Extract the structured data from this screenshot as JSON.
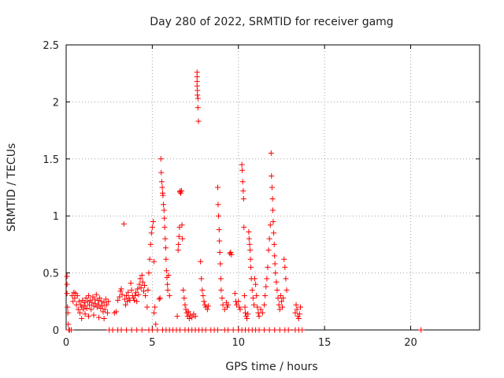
{
  "chart_data": {
    "type": "scatter",
    "title": "Day 280 of 2022, SRMTID for receiver gamg",
    "xlabel": "GPS time / hours",
    "ylabel": "SRMTID / TECUs",
    "xlim": [
      0,
      24
    ],
    "ylim": [
      0,
      2.5
    ],
    "grid": true,
    "marker": "+",
    "color": "#ff0000",
    "xticks": [
      0,
      5,
      10,
      15,
      20
    ],
    "xtick_labels": [
      "0",
      "5",
      "10",
      "15",
      "20"
    ],
    "yticks": [
      0,
      0.5,
      1,
      1.5,
      2,
      2.5
    ],
    "ytick_labels": [
      "0",
      "0.5",
      "1",
      "1.5",
      "2",
      "2.5"
    ],
    "series": [
      {
        "name": "SRMTID",
        "points": [
          [
            0.05,
            0.47
          ],
          [
            0.05,
            0.4
          ],
          [
            0.05,
            0.32
          ],
          [
            0.08,
            0.2
          ],
          [
            0.1,
            0.15
          ],
          [
            0.12,
            0.05
          ],
          [
            0.15,
            0.0
          ],
          [
            0.2,
            0.0
          ],
          [
            0.3,
            0.0
          ],
          [
            0.35,
            0.3
          ],
          [
            0.4,
            0.25
          ],
          [
            0.45,
            0.33
          ],
          [
            0.5,
            0.28
          ],
          [
            0.55,
            0.32
          ],
          [
            0.6,
            0.22
          ],
          [
            0.65,
            0.3
          ],
          [
            0.7,
            0.18
          ],
          [
            0.75,
            0.25
          ],
          [
            0.8,
            0.15
          ],
          [
            0.85,
            0.22
          ],
          [
            0.9,
            0.2
          ],
          [
            0.95,
            0.26
          ],
          [
            1.0,
            0.18
          ],
          [
            1.05,
            0.24
          ],
          [
            1.1,
            0.21
          ],
          [
            1.15,
            0.28
          ],
          [
            1.2,
            0.19
          ],
          [
            1.25,
            0.25
          ],
          [
            1.3,
            0.3
          ],
          [
            1.35,
            0.22
          ],
          [
            1.4,
            0.26
          ],
          [
            1.45,
            0.18
          ],
          [
            1.5,
            0.24
          ],
          [
            1.55,
            0.29
          ],
          [
            1.6,
            0.21
          ],
          [
            1.65,
            0.27
          ],
          [
            1.7,
            0.23
          ],
          [
            1.75,
            0.31
          ],
          [
            1.8,
            0.2
          ],
          [
            1.85,
            0.26
          ],
          [
            1.9,
            0.22
          ],
          [
            1.95,
            0.28
          ],
          [
            2.0,
            0.19
          ],
          [
            2.05,
            0.25
          ],
          [
            2.1,
            0.21
          ],
          [
            2.15,
            0.16
          ],
          [
            2.2,
            0.24
          ],
          [
            2.25,
            0.18
          ],
          [
            2.3,
            0.27
          ],
          [
            2.35,
            0.22
          ],
          [
            2.4,
            0.15
          ],
          [
            2.45,
            0.25
          ],
          [
            0.9,
            0.1
          ],
          [
            1.1,
            0.14
          ],
          [
            1.3,
            0.12
          ],
          [
            1.6,
            0.13
          ],
          [
            1.9,
            0.11
          ],
          [
            2.2,
            0.1
          ],
          [
            2.5,
            0.0
          ],
          [
            2.7,
            0.0
          ],
          [
            2.8,
            0.15
          ],
          [
            2.9,
            0.16
          ],
          [
            3.0,
            0.26
          ],
          [
            3.1,
            0.29
          ],
          [
            3.15,
            0.34
          ],
          [
            3.2,
            0.36
          ],
          [
            3.25,
            0.31
          ],
          [
            3.35,
            0.93
          ],
          [
            3.4,
            0.27
          ],
          [
            3.45,
            0.22
          ],
          [
            3.5,
            0.3
          ],
          [
            3.55,
            0.25
          ],
          [
            3.6,
            0.33
          ],
          [
            3.65,
            0.28
          ],
          [
            3.7,
            0.26
          ],
          [
            3.75,
            0.41
          ],
          [
            3.8,
            0.35
          ],
          [
            3.85,
            0.3
          ],
          [
            3.9,
            0.28
          ],
          [
            3.95,
            0.26
          ],
          [
            4.0,
            0.3
          ],
          [
            4.05,
            0.33
          ],
          [
            4.1,
            0.25
          ],
          [
            4.15,
            0.36
          ],
          [
            4.2,
            0.31
          ],
          [
            4.25,
            0.4
          ],
          [
            4.3,
            0.45
          ],
          [
            4.35,
            0.37
          ],
          [
            4.4,
            0.48
          ],
          [
            4.45,
            0.42
          ],
          [
            4.5,
            0.34
          ],
          [
            4.55,
            0.39
          ],
          [
            4.6,
            0.3
          ],
          [
            3.0,
            0.0
          ],
          [
            3.2,
            0.0
          ],
          [
            3.5,
            0.0
          ],
          [
            3.8,
            0.0
          ],
          [
            4.1,
            0.0
          ],
          [
            4.4,
            0.0
          ],
          [
            4.7,
            0.2
          ],
          [
            4.75,
            0.35
          ],
          [
            4.8,
            0.5
          ],
          [
            4.85,
            0.62
          ],
          [
            4.9,
            0.75
          ],
          [
            4.95,
            0.85
          ],
          [
            5.0,
            0.9
          ],
          [
            5.05,
            0.95
          ],
          [
            5.1,
            0.6
          ],
          [
            5.1,
            0.15
          ],
          [
            5.15,
            0.2
          ],
          [
            5.2,
            0.05
          ],
          [
            5.0,
            0.0
          ],
          [
            4.8,
            0.0
          ],
          [
            5.3,
            0.0
          ],
          [
            5.4,
            0.27
          ],
          [
            5.45,
            0.28
          ],
          [
            5.5,
            1.5
          ],
          [
            5.52,
            1.38
          ],
          [
            5.55,
            1.3
          ],
          [
            5.58,
            1.25
          ],
          [
            5.6,
            1.2
          ],
          [
            5.62,
            1.18
          ],
          [
            5.65,
            1.1
          ],
          [
            5.68,
            1.05
          ],
          [
            5.7,
            0.98
          ],
          [
            5.72,
            0.9
          ],
          [
            5.75,
            0.8
          ],
          [
            5.78,
            0.72
          ],
          [
            5.8,
            0.62
          ],
          [
            5.82,
            0.52
          ],
          [
            5.85,
            0.46
          ],
          [
            5.88,
            0.4
          ],
          [
            5.9,
            0.35
          ],
          [
            5.95,
            0.48
          ],
          [
            6.0,
            0.3
          ],
          [
            5.6,
            0.0
          ],
          [
            5.8,
            0.0
          ],
          [
            6.0,
            0.0
          ],
          [
            6.2,
            0.0
          ],
          [
            6.4,
            0.0
          ],
          [
            6.45,
            0.12
          ],
          [
            6.5,
            0.7
          ],
          [
            6.52,
            0.75
          ],
          [
            6.55,
            0.82
          ],
          [
            6.58,
            0.9
          ],
          [
            6.6,
            1.21
          ],
          [
            6.62,
            1.22
          ],
          [
            6.65,
            1.2
          ],
          [
            6.7,
            1.22
          ],
          [
            6.72,
            0.92
          ],
          [
            6.75,
            0.8
          ],
          [
            6.8,
            0.35
          ],
          [
            6.85,
            0.28
          ],
          [
            6.9,
            0.22
          ],
          [
            6.95,
            0.18
          ],
          [
            7.0,
            0.15
          ],
          [
            7.05,
            0.12
          ],
          [
            7.1,
            0.16
          ],
          [
            7.15,
            0.1
          ],
          [
            7.2,
            0.13
          ],
          [
            7.3,
            0.11
          ],
          [
            7.4,
            0.14
          ],
          [
            7.5,
            0.12
          ],
          [
            6.6,
            0.0
          ],
          [
            6.9,
            0.0
          ],
          [
            7.1,
            0.0
          ],
          [
            7.3,
            0.0
          ],
          [
            7.5,
            0.0
          ],
          [
            7.6,
            2.26
          ],
          [
            7.6,
            2.22
          ],
          [
            7.6,
            2.18
          ],
          [
            7.6,
            2.14
          ],
          [
            7.62,
            2.1
          ],
          [
            7.62,
            2.06
          ],
          [
            7.65,
            2.03
          ],
          [
            7.65,
            1.95
          ],
          [
            7.68,
            1.83
          ],
          [
            7.7,
            0.0
          ],
          [
            7.9,
            0.0
          ],
          [
            8.1,
            0.0
          ],
          [
            7.8,
            0.6
          ],
          [
            7.85,
            0.45
          ],
          [
            7.9,
            0.35
          ],
          [
            7.95,
            0.3
          ],
          [
            8.0,
            0.25
          ],
          [
            8.05,
            0.22
          ],
          [
            8.1,
            0.2
          ],
          [
            8.2,
            0.18
          ],
          [
            8.25,
            0.21
          ],
          [
            8.4,
            0.0
          ],
          [
            8.6,
            0.0
          ],
          [
            8.8,
            0.0
          ],
          [
            8.8,
            1.25
          ],
          [
            8.82,
            1.1
          ],
          [
            8.85,
            1.0
          ],
          [
            8.88,
            0.88
          ],
          [
            8.9,
            0.78
          ],
          [
            8.92,
            0.68
          ],
          [
            8.95,
            0.58
          ],
          [
            8.98,
            0.45
          ],
          [
            9.0,
            0.35
          ],
          [
            9.05,
            0.28
          ],
          [
            9.1,
            0.22
          ],
          [
            9.2,
            0.18
          ],
          [
            9.3,
            0.24
          ],
          [
            9.35,
            0.2
          ],
          [
            9.4,
            0.22
          ],
          [
            9.2,
            0.0
          ],
          [
            9.4,
            0.0
          ],
          [
            9.5,
            0.67
          ],
          [
            9.55,
            0.68
          ],
          [
            9.6,
            0.66
          ],
          [
            9.7,
            0.0
          ],
          [
            9.8,
            0.32
          ],
          [
            9.85,
            0.25
          ],
          [
            9.9,
            0.22
          ],
          [
            10.0,
            0.25
          ],
          [
            10.05,
            0.2
          ],
          [
            10.1,
            0.18
          ],
          [
            10.0,
            0.0
          ],
          [
            10.2,
            0.0
          ],
          [
            10.2,
            1.45
          ],
          [
            10.22,
            1.4
          ],
          [
            10.25,
            1.3
          ],
          [
            10.28,
            1.22
          ],
          [
            10.3,
            1.15
          ],
          [
            10.32,
            0.9
          ],
          [
            10.35,
            0.3
          ],
          [
            10.38,
            0.2
          ],
          [
            10.4,
            0.15
          ],
          [
            10.45,
            0.12
          ],
          [
            10.5,
            0.1
          ],
          [
            10.55,
            0.14
          ],
          [
            10.6,
            0.86
          ],
          [
            10.62,
            0.8
          ],
          [
            10.65,
            0.75
          ],
          [
            10.68,
            0.7
          ],
          [
            10.7,
            0.62
          ],
          [
            10.72,
            0.55
          ],
          [
            10.75,
            0.45
          ],
          [
            10.8,
            0.35
          ],
          [
            10.85,
            0.28
          ],
          [
            10.9,
            0.22
          ],
          [
            10.95,
            0.45
          ],
          [
            11.0,
            0.4
          ],
          [
            11.05,
            0.3
          ],
          [
            11.1,
            0.2
          ],
          [
            11.15,
            0.15
          ],
          [
            11.2,
            0.12
          ],
          [
            10.4,
            0.0
          ],
          [
            10.6,
            0.0
          ],
          [
            10.8,
            0.0
          ],
          [
            11.0,
            0.0
          ],
          [
            11.2,
            0.0
          ],
          [
            11.3,
            0.18
          ],
          [
            11.4,
            0.15
          ],
          [
            11.5,
            0.22
          ],
          [
            11.55,
            0.3
          ],
          [
            11.6,
            0.38
          ],
          [
            11.65,
            0.45
          ],
          [
            11.7,
            0.55
          ],
          [
            11.75,
            0.7
          ],
          [
            11.8,
            0.8
          ],
          [
            11.85,
            0.92
          ],
          [
            11.9,
            1.55
          ],
          [
            11.92,
            1.35
          ],
          [
            11.95,
            1.25
          ],
          [
            11.98,
            1.15
          ],
          [
            12.0,
            1.05
          ],
          [
            12.02,
            0.95
          ],
          [
            12.05,
            0.85
          ],
          [
            12.08,
            0.75
          ],
          [
            12.1,
            0.65
          ],
          [
            12.12,
            0.58
          ],
          [
            12.15,
            0.5
          ],
          [
            12.2,
            0.42
          ],
          [
            12.25,
            0.35
          ],
          [
            12.3,
            0.28
          ],
          [
            12.35,
            0.22
          ],
          [
            12.4,
            0.18
          ],
          [
            12.45,
            0.3
          ],
          [
            12.5,
            0.25
          ],
          [
            12.55,
            0.2
          ],
          [
            12.6,
            0.28
          ],
          [
            12.65,
            0.62
          ],
          [
            12.7,
            0.55
          ],
          [
            12.75,
            0.45
          ],
          [
            12.8,
            0.35
          ],
          [
            11.5,
            0.0
          ],
          [
            11.8,
            0.0
          ],
          [
            12.1,
            0.0
          ],
          [
            12.4,
            0.0
          ],
          [
            12.7,
            0.0
          ],
          [
            12.9,
            0.0
          ],
          [
            13.3,
            0.15
          ],
          [
            13.35,
            0.22
          ],
          [
            13.4,
            0.18
          ],
          [
            13.45,
            0.12
          ],
          [
            13.5,
            0.1
          ],
          [
            13.55,
            0.14
          ],
          [
            13.6,
            0.2
          ],
          [
            13.3,
            0.0
          ],
          [
            13.5,
            0.0
          ],
          [
            13.7,
            0.0
          ],
          [
            20.6,
            0.0
          ]
        ]
      }
    ]
  }
}
